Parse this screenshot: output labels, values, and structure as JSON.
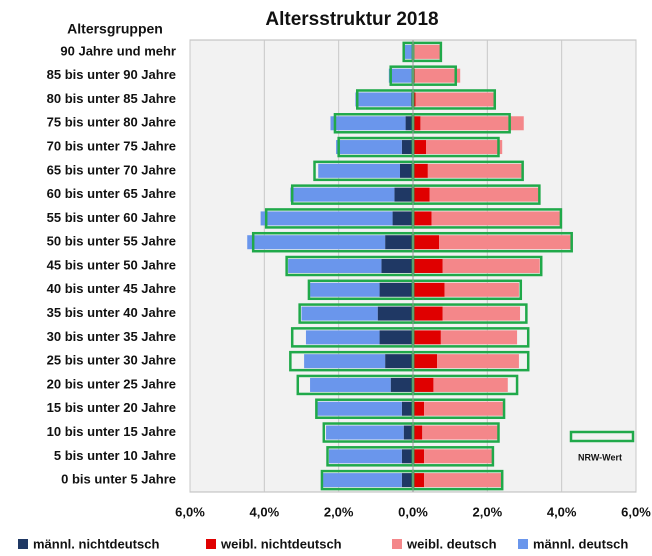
{
  "chart_data": {
    "type": "pyramid",
    "title": "Altersstruktur 2018",
    "y_axis_title": "Altersgruppen",
    "categories": [
      "90 Jahre und mehr",
      "85 bis unter 90 Jahre",
      "80 bis unter 85 Jahre",
      "75 bis unter 80 Jahre",
      "70 bis unter 75 Jahre",
      "65 bis unter 70 Jahre",
      "60 bis unter 65 Jahre",
      "55 bis unter 60 Jahre",
      "50 bis unter 55 Jahre",
      "45 bis unter 50 Jahre",
      "40 bis unter 45 Jahre",
      "35 bis unter 40 Jahre",
      "30 bis unter 35 Jahre",
      "25 bis unter 30 Jahre",
      "20 bis unter 25 Jahre",
      "15 bis unter 20 Jahre",
      "10 bis unter 15 Jahre",
      "5 bis unter 10 Jahre",
      "0 bis unter 5 Jahre"
    ],
    "series": [
      {
        "name": "männl. nichtdeutsch",
        "color": "#1f3864",
        "values": [
          -0.02,
          -0.03,
          -0.05,
          -0.2,
          -0.3,
          -0.35,
          -0.5,
          -0.55,
          -0.75,
          -0.85,
          -0.9,
          -0.95,
          -0.9,
          -0.75,
          -0.6,
          -0.3,
          -0.25,
          -0.3,
          -0.3
        ]
      },
      {
        "name": "weibl. nichtdeutsch",
        "color": "#e00000",
        "values": [
          0.03,
          0.05,
          0.07,
          0.2,
          0.35,
          0.4,
          0.45,
          0.5,
          0.7,
          0.8,
          0.85,
          0.8,
          0.75,
          0.65,
          0.55,
          0.3,
          0.25,
          0.3,
          0.3
        ]
      },
      {
        "name": "weibl. deutsch",
        "color": "#f4878a",
        "values": [
          0.75,
          1.22,
          2.15,
          2.78,
          2.05,
          2.55,
          2.95,
          3.48,
          3.57,
          2.61,
          2.0,
          2.08,
          2.05,
          2.2,
          2.0,
          2.15,
          2.03,
          1.85,
          2.09
        ]
      },
      {
        "name": "männl. deutsch",
        "color": "#6a96ec",
        "values": [
          -0.2,
          -0.62,
          -1.5,
          -2.02,
          -1.77,
          -2.2,
          -2.8,
          -3.55,
          -3.71,
          -2.51,
          -1.87,
          -2.05,
          -1.98,
          -2.18,
          -2.17,
          -2.28,
          -2.09,
          -1.96,
          -2.12
        ]
      }
    ],
    "nrw": {
      "name": "NRW-Wert",
      "color": "#20a94a",
      "male": [
        -0.25,
        -0.6,
        -1.5,
        -2.1,
        -2.0,
        -2.65,
        -3.25,
        -3.95,
        -4.3,
        -3.4,
        -2.8,
        -3.05,
        -3.25,
        -3.3,
        -3.1,
        -2.6,
        -2.4,
        -2.3,
        -2.45
      ],
      "female": [
        0.75,
        1.15,
        2.2,
        2.6,
        2.3,
        2.95,
        3.4,
        3.98,
        4.27,
        3.45,
        2.9,
        3.05,
        3.1,
        3.1,
        2.8,
        2.45,
        2.3,
        2.15,
        2.4
      ]
    },
    "xlim": [
      -6,
      6
    ],
    "xticks": [
      {
        "value": -6,
        "label": "6,0%"
      },
      {
        "value": -4,
        "label": "4,0%"
      },
      {
        "value": -2,
        "label": "2,0%"
      },
      {
        "value": 0,
        "label": "0,0%"
      },
      {
        "value": 2,
        "label": "2,0%"
      },
      {
        "value": 4,
        "label": "4,0%"
      },
      {
        "value": 6,
        "label": "6,0%"
      }
    ],
    "grid": true
  }
}
